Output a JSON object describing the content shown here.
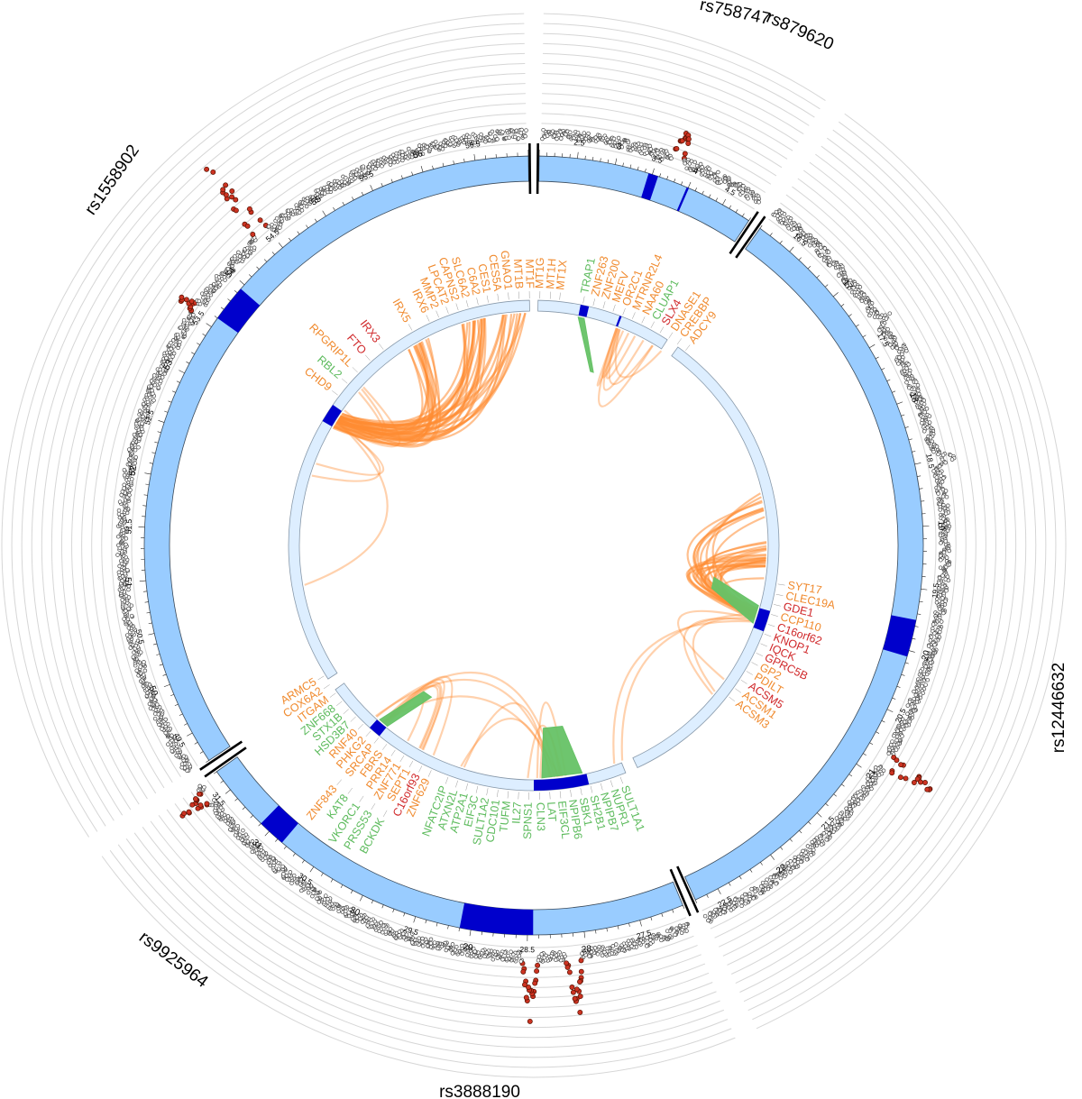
{
  "snp_labels": [
    {
      "name": "rs758747",
      "angle": 12
    },
    {
      "name": "rs879620",
      "angle": 24
    },
    {
      "name": "rs12446632",
      "angle": 100
    },
    {
      "name": "rs3888190",
      "angle": 180
    },
    {
      "name": "rs9925964",
      "angle": 215
    },
    {
      "name": "rs1558902",
      "angle": 302
    }
  ],
  "colors": {
    "ideogram": "#99CCFF",
    "locus": "#0000CC",
    "inner_ring": "#DDEEFF",
    "inner_ring_stroke": "#8899AA",
    "link_orange": "#FF8C33",
    "link_green": "#66C266",
    "gene_orange": "#F08A2E",
    "gene_red": "#D0282A",
    "gene_green": "#5DBB5D",
    "manhattan_point": "#444444",
    "sig_point": "#CC3322",
    "grid": "#D6D6D6"
  },
  "segments": [
    {
      "id": "seg-a",
      "start": 2.0,
      "end": 4.9,
      "a0": 0.8,
      "a1": 33.5,
      "ticks": [
        "2.5",
        "3",
        "3.5",
        "4",
        "4.5"
      ],
      "major": [
        "3",
        "4"
      ],
      "loci": [
        {
          "s": 3.45,
          "e": 3.58
        },
        {
          "s": 3.98,
          "e": 4.01
        }
      ]
    },
    {
      "id": "seg-b",
      "start": 16.2,
      "end": 22.7,
      "a0": 35.5,
      "a1": 155.5,
      "ticks": [
        "16.5",
        "17",
        "17.5",
        "18",
        "18.5",
        "19",
        "19.5",
        "20",
        "20.5",
        "21",
        "21.5",
        "22",
        "22.5"
      ],
      "major": [
        "17",
        "18",
        "19",
        "20",
        "21",
        "22"
      ],
      "loci": [
        {
          "s": 19.75,
          "e": 20.05
        }
      ]
    },
    {
      "id": "seg-c",
      "start": 27.1,
      "end": 31.7,
      "a0": 157.5,
      "a1": 234.5,
      "ticks": [
        "27.5",
        "28",
        "28.5",
        "29",
        "29.5",
        "30",
        "30.5",
        "31",
        "31.5"
      ],
      "major": [
        "28",
        "29",
        "30",
        "31"
      ],
      "loci": [
        {
          "s": 28.45,
          "e": 29.1
        },
        {
          "s": 30.85,
          "e": 31.1
        }
      ]
    },
    {
      "id": "seg-d",
      "start": 49.2,
      "end": 57.0,
      "a0": 236.5,
      "a1": 359.2,
      "ticks": [
        "49.5",
        "50",
        "50.5",
        "51",
        "51.5",
        "52",
        "52.5",
        "53",
        "53.5",
        "54",
        "54.5",
        "55",
        "55.5",
        "56",
        "56.5"
      ],
      "major": [
        "50",
        "51",
        "52",
        "53",
        "54",
        "55",
        "56"
      ],
      "loci": [
        {
          "s": 53.6,
          "e": 53.95
        }
      ]
    }
  ],
  "inner_segments": [
    {
      "a0": 1.0,
      "a1": 33.0,
      "loci": [
        {
          "a0": 11.0,
          "a1": 13.0
        },
        {
          "a0": 20.5,
          "a1": 21.0
        }
      ]
    },
    {
      "a0": 36.0,
      "a1": 155.0,
      "loci": [
        {
          "a0": 105.5,
          "a1": 110.5
        }
      ]
    },
    {
      "a0": 158.0,
      "a1": 234.0,
      "loci": [
        {
          "a0": 167.0,
          "a1": 180.0
        },
        {
          "a0": 219.0,
          "a1": 222.0
        }
      ]
    },
    {
      "a0": 237.0,
      "a1": 359.0,
      "loci": [
        {
          "a0": 300.5,
          "a1": 305.0
        }
      ]
    }
  ],
  "genes": [
    {
      "name": "MT1X",
      "angle": 6.0,
      "color": "orange"
    },
    {
      "name": "MT1H",
      "angle": 3.8,
      "color": "orange"
    },
    {
      "name": "MT1G",
      "angle": 1.4,
      "color": "orange"
    },
    {
      "name": "MT1F",
      "angle": 359.0,
      "color": "orange"
    },
    {
      "name": "MT1B",
      "angle": 356.6,
      "color": "orange"
    },
    {
      "name": "GNAO1",
      "angle": 354.2,
      "color": "orange"
    },
    {
      "name": "CES5A",
      "angle": 351.8,
      "color": "orange"
    },
    {
      "name": "CES1",
      "angle": 349.4,
      "color": "orange"
    },
    {
      "name": "C6A2",
      "angle": 347.0,
      "color": "orange"
    },
    {
      "name": "SLC6A2",
      "angle": 344.6,
      "color": "orange"
    },
    {
      "name": "CAPNS2",
      "angle": 342.2,
      "color": "orange"
    },
    {
      "name": "LPCAT2",
      "angle": 339.8,
      "color": "orange"
    },
    {
      "name": "MMP2",
      "angle": 337.4,
      "color": "orange"
    },
    {
      "name": "IRX6",
      "angle": 335.0,
      "color": "orange"
    },
    {
      "name": "IRX5",
      "angle": 330.5,
      "color": "orange"
    },
    {
      "name": "IRX3",
      "angle": 322.5,
      "color": "red"
    },
    {
      "name": "FTO",
      "angle": 318.5,
      "color": "red"
    },
    {
      "name": "RPGRIP1L",
      "angle": 314.5,
      "color": "orange"
    },
    {
      "name": "RBL2",
      "angle": 311.0,
      "color": "green"
    },
    {
      "name": "CHD9",
      "angle": 307.5,
      "color": "orange"
    },
    {
      "name": "TRAP1",
      "angle": 11.5,
      "color": "green"
    },
    {
      "name": "ZNF263",
      "angle": 13.9,
      "color": "orange"
    },
    {
      "name": "ZNF200",
      "angle": 16.3,
      "color": "orange"
    },
    {
      "name": "MEFV",
      "angle": 18.7,
      "color": "orange"
    },
    {
      "name": "OR2C1",
      "angle": 21.1,
      "color": "orange"
    },
    {
      "name": "MTRNR2L4",
      "angle": 23.5,
      "color": "orange"
    },
    {
      "name": "NAA60",
      "angle": 25.9,
      "color": "orange"
    },
    {
      "name": "CLUAP1",
      "angle": 28.3,
      "color": "green"
    },
    {
      "name": "SLX4",
      "angle": 30.7,
      "color": "red"
    },
    {
      "name": "DNASE1",
      "angle": 33.1,
      "color": "orange"
    },
    {
      "name": "CREBBP",
      "angle": 35.5,
      "color": "orange"
    },
    {
      "name": "ADCY9",
      "angle": 37.9,
      "color": "orange"
    },
    {
      "name": "SYT17",
      "angle": 99.0,
      "color": "orange"
    },
    {
      "name": "CLEC19A",
      "angle": 101.4,
      "color": "orange"
    },
    {
      "name": "GDE1",
      "angle": 103.8,
      "color": "red"
    },
    {
      "name": "CCP110",
      "angle": 106.2,
      "color": "orange"
    },
    {
      "name": "C16orf62",
      "angle": 108.6,
      "color": "red"
    },
    {
      "name": "KNOP1",
      "angle": 111.0,
      "color": "red"
    },
    {
      "name": "IQCK",
      "angle": 113.4,
      "color": "red"
    },
    {
      "name": "GPRC5B",
      "angle": 115.8,
      "color": "red"
    },
    {
      "name": "GP2",
      "angle": 118.2,
      "color": "orange"
    },
    {
      "name": "PDILT",
      "angle": 120.6,
      "color": "orange"
    },
    {
      "name": "ACSM5",
      "angle": 123.0,
      "color": "red"
    },
    {
      "name": "ACSM1",
      "angle": 125.4,
      "color": "orange"
    },
    {
      "name": "ACSM3",
      "angle": 127.8,
      "color": "orange"
    },
    {
      "name": "SULT1A1",
      "angle": 159.5,
      "color": "green"
    },
    {
      "name": "NUPR1",
      "angle": 161.9,
      "color": "green"
    },
    {
      "name": "NPIPB7",
      "angle": 164.3,
      "color": "green"
    },
    {
      "name": "SH2B1",
      "angle": 166.7,
      "color": "green"
    },
    {
      "name": "SBK1",
      "angle": 169.1,
      "color": "green"
    },
    {
      "name": "NPIPB6",
      "angle": 171.5,
      "color": "green"
    },
    {
      "name": "EIF3CL",
      "angle": 173.9,
      "color": "green"
    },
    {
      "name": "LAT",
      "angle": 176.3,
      "color": "green"
    },
    {
      "name": "CLN3",
      "angle": 178.7,
      "color": "green"
    },
    {
      "name": "SPNS1",
      "angle": 181.1,
      "color": "green"
    },
    {
      "name": "IL27",
      "angle": 183.5,
      "color": "green"
    },
    {
      "name": "TUFM",
      "angle": 185.9,
      "color": "green"
    },
    {
      "name": "CDC101",
      "angle": 188.3,
      "color": "green"
    },
    {
      "name": "SULT1A2",
      "angle": 190.7,
      "color": "green"
    },
    {
      "name": "EIF3C",
      "angle": 193.1,
      "color": "green"
    },
    {
      "name": "ATP2A1",
      "angle": 195.5,
      "color": "green"
    },
    {
      "name": "ATXN2L",
      "angle": 197.9,
      "color": "green"
    },
    {
      "name": "NFATC2IP",
      "angle": 200.3,
      "color": "green"
    },
    {
      "name": "ZNF629",
      "angle": 204.5,
      "color": "orange"
    },
    {
      "name": "C16orf93",
      "angle": 206.9,
      "color": "red"
    },
    {
      "name": "SEPT1",
      "angle": 209.3,
      "color": "orange"
    },
    {
      "name": "ZNF771",
      "angle": 211.7,
      "color": "orange"
    },
    {
      "name": "PRR14",
      "angle": 214.1,
      "color": "orange"
    },
    {
      "name": "FBRS",
      "angle": 216.5,
      "color": "orange"
    },
    {
      "name": "SRCAP",
      "angle": 218.9,
      "color": "orange"
    },
    {
      "name": "PHKG2",
      "angle": 221.3,
      "color": "orange"
    },
    {
      "name": "RNF40",
      "angle": 223.7,
      "color": "orange"
    },
    {
      "name": "HSD3B7",
      "angle": 226.1,
      "color": "green"
    },
    {
      "name": "STX1B",
      "angle": 228.5,
      "color": "green"
    },
    {
      "name": "ZNF668",
      "angle": 230.9,
      "color": "green"
    },
    {
      "name": "ITGAM",
      "angle": 233.3,
      "color": "orange"
    },
    {
      "name": "COX6A2",
      "angle": 235.7,
      "color": "orange"
    },
    {
      "name": "ARMC5",
      "angle": 238.1,
      "color": "orange"
    },
    {
      "name": "BCKDK",
      "angle": 209.0,
      "color": "green",
      "outer": true
    },
    {
      "name": "PRSS53",
      "angle": 211.6,
      "color": "green",
      "outer": true
    },
    {
      "name": "VKORC1",
      "angle": 214.2,
      "color": "green",
      "outer": true
    },
    {
      "name": "KAT8",
      "angle": 216.8,
      "color": "green",
      "outer": true
    },
    {
      "name": "ZNF843",
      "angle": 219.4,
      "color": "orange",
      "outer": true
    }
  ],
  "links": [
    {
      "from": 302.0,
      "to": 303.5,
      "fromW": 1.5,
      "toW": 3,
      "spread": 1.0,
      "count": 1
    },
    {
      "from": 302.5,
      "to": 260.0,
      "count": 1
    },
    {
      "from": 301.5,
      "to": 330.0,
      "count": 14
    },
    {
      "from": 302.8,
      "to": 345.0,
      "count": 18
    },
    {
      "from": 303.5,
      "to": 355.0,
      "count": 12
    },
    {
      "from": 301.0,
      "to": 310.0,
      "count": 3
    },
    {
      "from": 303.0,
      "to": 288.0,
      "count": 2
    },
    {
      "from": 20.8,
      "to": 31.0,
      "count": 4
    },
    {
      "from": 20.8,
      "to": 24.0,
      "count": 3
    },
    {
      "from": 107.0,
      "to": 80.0,
      "count": 9
    },
    {
      "from": 107.5,
      "to": 92.0,
      "count": 14
    },
    {
      "from": 107.5,
      "to": 96.0,
      "count": 8
    },
    {
      "from": 108.5,
      "to": 128.0,
      "count": 3
    },
    {
      "from": 108.0,
      "to": 160.0,
      "count": 2
    },
    {
      "from": 172.5,
      "to": 181.0,
      "count": 3
    },
    {
      "from": 174.0,
      "to": 220.0,
      "count": 3
    },
    {
      "from": 176.0,
      "to": 198.0,
      "count": 2
    },
    {
      "from": 220.5,
      "to": 207.0,
      "count": 4
    },
    {
      "from": 220.5,
      "to": 210.0,
      "count": 2
    }
  ],
  "green_links": [
    {
      "a0": 11.0,
      "a1": 12.5,
      "b0": 18.0,
      "b1": 19.0
    },
    {
      "a0": 105.0,
      "a1": 109.5,
      "b0": 100.0,
      "b1": 103.5
    },
    {
      "a0": 168.0,
      "a1": 178.0,
      "b0": 171.0,
      "b1": 177.0
    },
    {
      "a0": 219.0,
      "a1": 221.5,
      "b0": 214.0,
      "b1": 217.0
    }
  ],
  "manhattan_peaks": [
    {
      "angle": 20.5,
      "height": 0.35,
      "sig": true
    },
    {
      "angle": 121.5,
      "height": 0.55,
      "sig": true
    },
    {
      "angle": 174.5,
      "height": 0.55,
      "sig": true
    },
    {
      "angle": 180.5,
      "height": 0.6,
      "sig": true
    },
    {
      "angle": 232.5,
      "height": 0.35,
      "sig": true
    },
    {
      "angle": 319.0,
      "height": 0.8,
      "sig": true
    },
    {
      "angle": 305.0,
      "height": 0.25,
      "sig": true
    },
    {
      "angle": 78.0,
      "height": 0.25,
      "sig": false
    },
    {
      "angle": 57.0,
      "height": 0.2,
      "sig": false
    },
    {
      "angle": 62.0,
      "height": 0.2,
      "sig": false
    }
  ],
  "manhattan_noise": {
    "base": 0.06,
    "amplitude": 0.07
  }
}
